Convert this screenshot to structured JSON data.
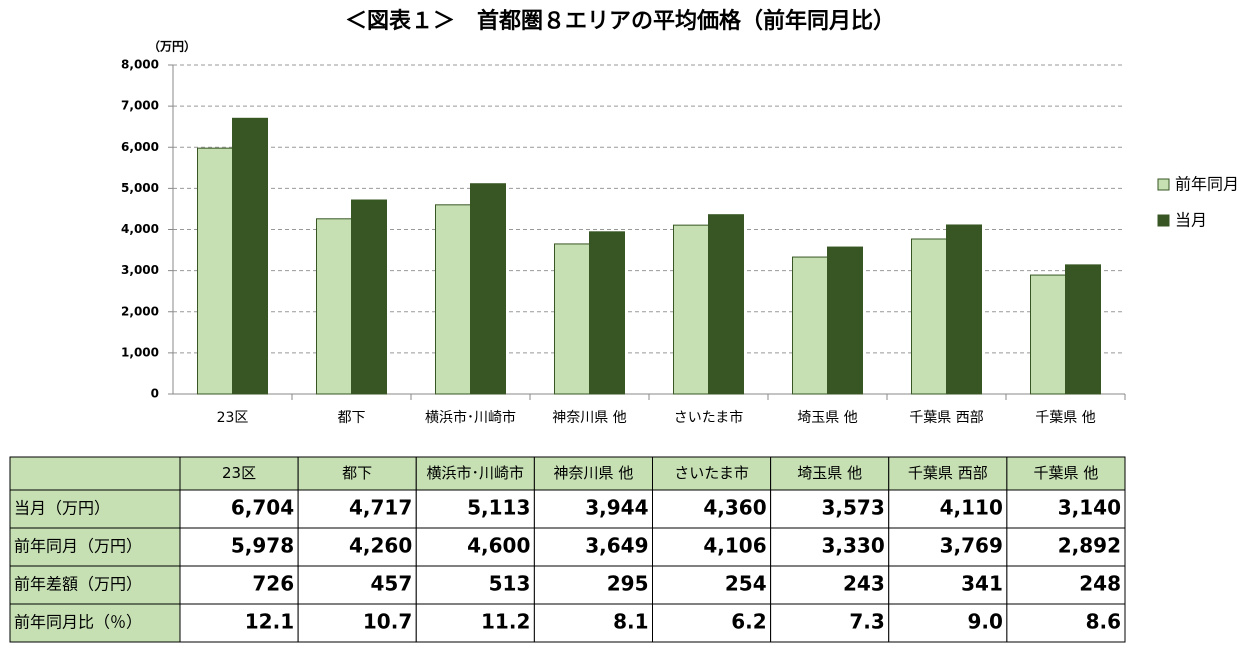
{
  "chart_data": {
    "type": "bar",
    "title": "＜図表１＞　首都圏８エリアの平均価格（前年同月比）",
    "y_unit": "（万円）",
    "categories": [
      "23区",
      "都下",
      "横浜市･川崎市",
      "神奈川県 他",
      "さいたま市",
      "埼玉県 他",
      "千葉県 西部",
      "千葉県 他"
    ],
    "series": [
      {
        "name": "前年同月",
        "color": "#c6e0b4",
        "values": [
          5978,
          4260,
          4600,
          3649,
          4106,
          3330,
          3769,
          2892
        ]
      },
      {
        "name": "当月",
        "color": "#375623",
        "values": [
          6704,
          4717,
          5113,
          3944,
          4360,
          3573,
          4110,
          3140
        ]
      }
    ],
    "ylim": [
      0,
      8000
    ],
    "yticks": [
      0,
      {
        "value": 1000,
        "label": "1,000"
      },
      {
        "value": 2000,
        "label": "2,000"
      },
      {
        "value": 3000,
        "label": "3,000"
      },
      {
        "value": 4000,
        "label": "4,000"
      },
      {
        "value": 5000,
        "label": "5,000"
      },
      {
        "value": 6000,
        "label": "6,000"
      },
      {
        "value": 7000,
        "label": "7,000"
      },
      {
        "value": 8000,
        "label": "8,000"
      }
    ],
    "grid": true,
    "legend": "right"
  },
  "table": {
    "rows": [
      {
        "label": "当月（万円）",
        "cells": [
          "6,704",
          "4,717",
          "5,113",
          "3,944",
          "4,360",
          "3,573",
          "4,110",
          "3,140"
        ]
      },
      {
        "label": "前年同月（万円）",
        "cells": [
          "5,978",
          "4,260",
          "4,600",
          "3,649",
          "4,106",
          "3,330",
          "3,769",
          "2,892"
        ]
      },
      {
        "label": "前年差額（万円）",
        "cells": [
          "726",
          "457",
          "513",
          "295",
          "254",
          "243",
          "341",
          "248"
        ]
      },
      {
        "label": "前年同月比（％）",
        "cells": [
          "12.1",
          "10.7",
          "11.2",
          "8.1",
          "6.2",
          "7.3",
          "9.0",
          "8.6"
        ]
      }
    ]
  }
}
